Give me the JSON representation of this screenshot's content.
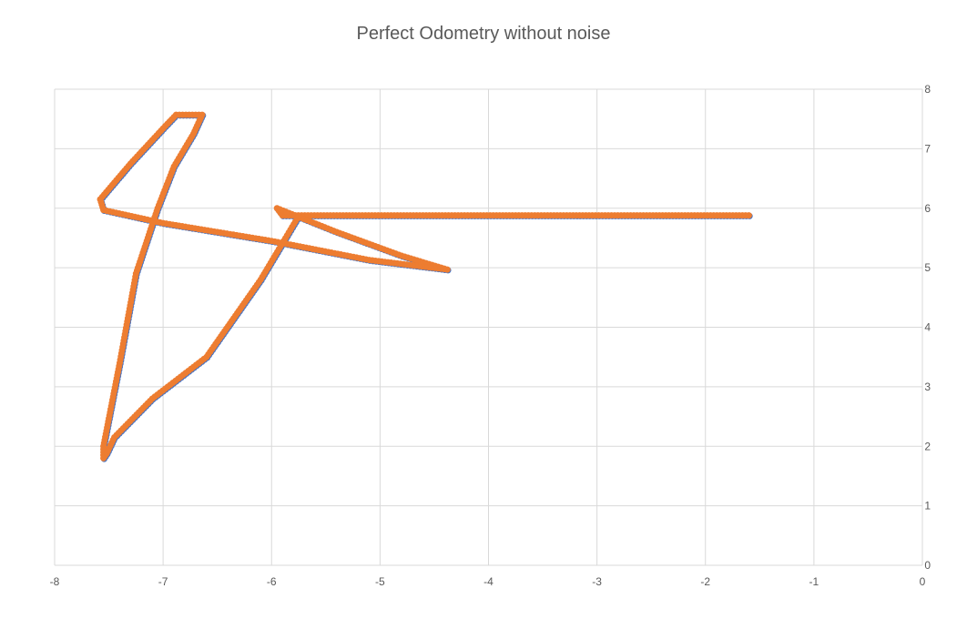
{
  "chart_data": {
    "type": "scatter",
    "title": "Perfect Odometry without noise",
    "xlabel": "",
    "ylabel": "",
    "xlim": [
      -8,
      0
    ],
    "ylim": [
      0,
      8
    ],
    "x_ticks": [
      -8,
      -7,
      -6,
      -5,
      -4,
      -3,
      -2,
      -1,
      0
    ],
    "y_ticks": [
      0,
      1,
      2,
      3,
      4,
      5,
      6,
      7,
      8
    ],
    "grid": true,
    "legend": "none",
    "y_axis_side": "right",
    "series": [
      {
        "color": "#4472C4",
        "marker": "circle",
        "points": [
          [
            -1.6,
            5.88
          ],
          [
            -5.9,
            5.88
          ],
          [
            -5.95,
            6.0
          ],
          [
            -5.4,
            5.6
          ],
          [
            -4.8,
            5.2
          ],
          [
            -4.38,
            4.97
          ],
          [
            -5.1,
            5.13
          ],
          [
            -6.0,
            5.45
          ],
          [
            -7.0,
            5.75
          ],
          [
            -7.55,
            5.97
          ],
          [
            -7.58,
            6.15
          ],
          [
            -7.3,
            6.75
          ],
          [
            -6.98,
            7.38
          ],
          [
            -6.88,
            7.57
          ],
          [
            -6.64,
            7.57
          ],
          [
            -6.72,
            7.25
          ],
          [
            -6.9,
            6.7
          ],
          [
            -7.05,
            6.0
          ],
          [
            -7.25,
            4.9
          ],
          [
            -7.4,
            3.4
          ],
          [
            -7.55,
            2.0
          ],
          [
            -7.55,
            1.8
          ],
          [
            -7.52,
            1.88
          ],
          [
            -7.45,
            2.15
          ],
          [
            -7.1,
            2.8
          ],
          [
            -6.6,
            3.5
          ],
          [
            -6.1,
            4.8
          ],
          [
            -5.75,
            5.87
          ]
        ]
      },
      {
        "color": "#ED7D31",
        "marker": "circle",
        "points": [
          [
            -1.6,
            5.88
          ],
          [
            -5.9,
            5.88
          ],
          [
            -5.95,
            6.0
          ],
          [
            -5.4,
            5.6
          ],
          [
            -4.8,
            5.2
          ],
          [
            -4.38,
            4.97
          ],
          [
            -5.1,
            5.13
          ],
          [
            -6.0,
            5.45
          ],
          [
            -7.0,
            5.75
          ],
          [
            -7.55,
            5.97
          ],
          [
            -7.58,
            6.15
          ],
          [
            -7.3,
            6.75
          ],
          [
            -6.98,
            7.38
          ],
          [
            -6.88,
            7.57
          ],
          [
            -6.64,
            7.57
          ],
          [
            -6.72,
            7.25
          ],
          [
            -6.9,
            6.7
          ],
          [
            -7.05,
            6.0
          ],
          [
            -7.25,
            4.9
          ],
          [
            -7.4,
            3.4
          ],
          [
            -7.55,
            2.0
          ],
          [
            -7.55,
            1.8
          ],
          [
            -7.52,
            1.88
          ],
          [
            -7.45,
            2.15
          ],
          [
            -7.1,
            2.8
          ],
          [
            -6.6,
            3.5
          ],
          [
            -6.1,
            4.8
          ],
          [
            -5.75,
            5.87
          ]
        ]
      }
    ]
  }
}
